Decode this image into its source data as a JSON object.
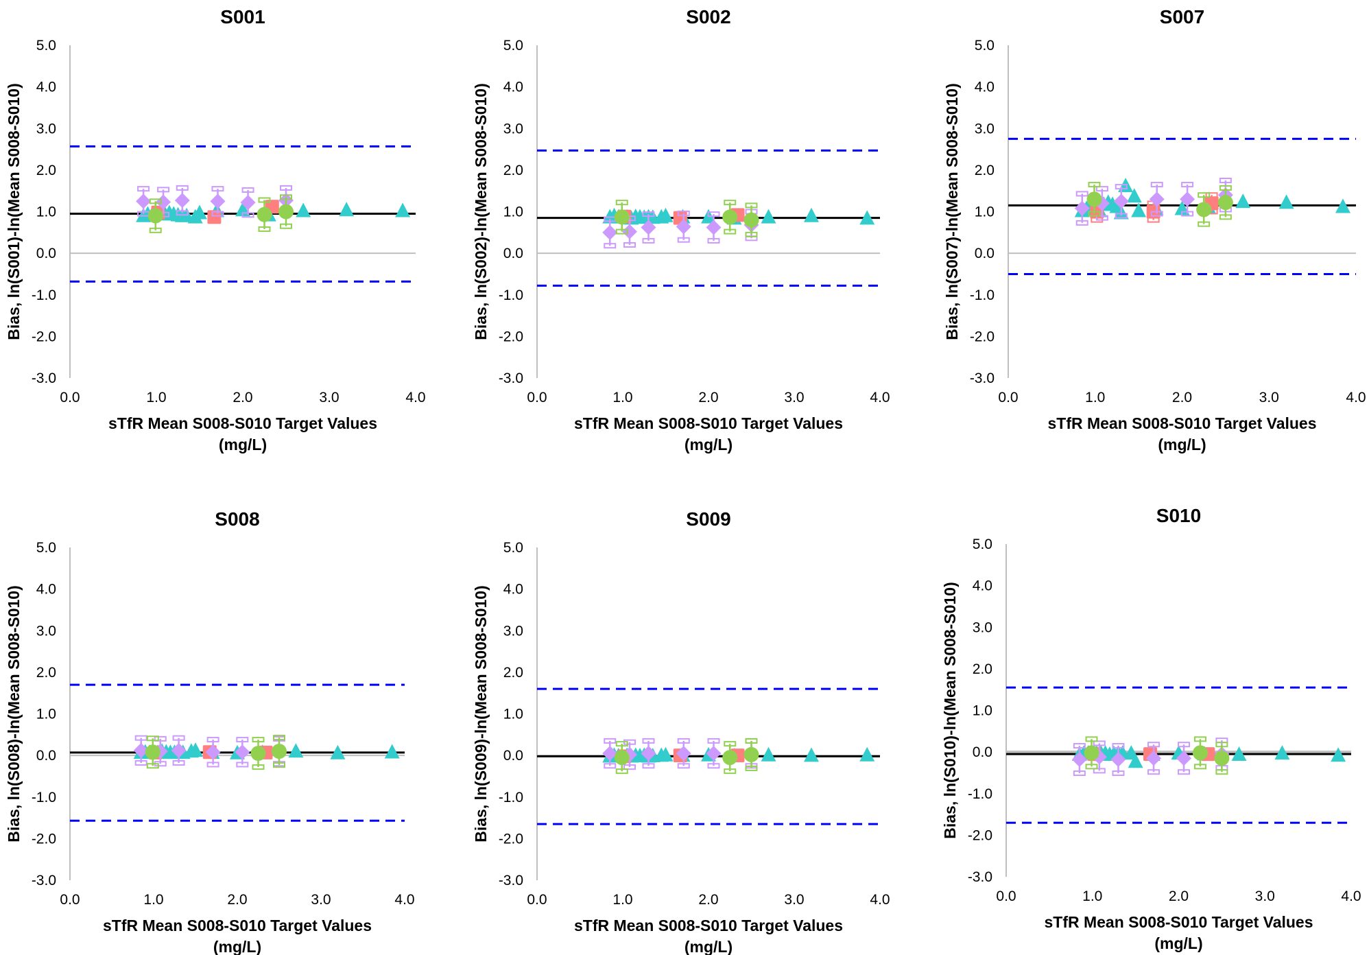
{
  "colors": {
    "diamond": "#CC99FF",
    "square": "#FF7F7F",
    "circle": "#92D050",
    "triangle": "#33CCCC",
    "limits": "#0000FF",
    "mean": "#000000",
    "zero": "#BFBFBF"
  },
  "chart_data": [
    {
      "type": "scatter",
      "title": "S001",
      "xlabel": [
        "sTfR Mean S008-S010 Target Values",
        "(mg/L)"
      ],
      "ylabel": "Bias, ln(S001)-ln(Mean S008-S010)",
      "xlim": [
        0,
        4
      ],
      "ylim": [
        -3,
        5
      ],
      "xticks": [
        "0.0",
        "1.0",
        "2.0",
        "3.0",
        "4.0"
      ],
      "yticks": [
        "-3.0",
        "-2.0",
        "-1.0",
        "0.0",
        "1.0",
        "2.0",
        "3.0",
        "4.0",
        "5.0"
      ],
      "mean_bias": 0.95,
      "upper_limit": 2.57,
      "lower_limit": -0.68,
      "series": [
        {
          "marker": "diamond",
          "x": [
            0.85,
            1.08,
            1.3,
            1.71,
            2.06,
            2.5
          ],
          "y": [
            1.25,
            1.23,
            1.27,
            1.25,
            1.22,
            1.27
          ],
          "err": 0.3
        },
        {
          "marker": "square",
          "x": [
            1.02,
            1.67,
            2.34
          ],
          "y": [
            0.98,
            0.87,
            1.12
          ]
        },
        {
          "marker": "circle",
          "x": [
            0.99,
            2.25,
            2.5
          ],
          "y": [
            0.9,
            0.93,
            1.0
          ],
          "err": 0.35
        },
        {
          "marker": "triangle",
          "x": [
            0.85,
            0.9,
            0.95,
            1.05,
            1.1,
            1.15,
            1.2,
            1.25,
            1.3,
            1.35,
            1.45,
            1.5,
            1.7,
            2.0,
            2.3,
            2.7,
            3.2,
            3.85
          ],
          "y": [
            0.88,
            0.92,
            0.9,
            0.95,
            0.92,
            0.95,
            0.92,
            0.9,
            0.88,
            0.88,
            0.85,
            0.95,
            1.0,
            1.02,
            0.9,
            1.0,
            1.02,
            1.0
          ]
        }
      ]
    },
    {
      "type": "scatter",
      "title": "S002",
      "xlabel": [
        "sTfR Mean S008-S010 Target Values",
        "(mg/L)"
      ],
      "ylabel": "Bias, ln(S002)-ln(Mean S008-S010)",
      "xlim": [
        0,
        4
      ],
      "ylim": [
        -3,
        5
      ],
      "xticks": [
        "0.0",
        "1.0",
        "2.0",
        "3.0",
        "4.0"
      ],
      "yticks": [
        "-3.0",
        "-2.0",
        "-1.0",
        "0.0",
        "1.0",
        "2.0",
        "3.0",
        "4.0",
        "5.0"
      ],
      "mean_bias": 0.85,
      "upper_limit": 2.47,
      "lower_limit": -0.78,
      "series": [
        {
          "marker": "diamond",
          "x": [
            0.85,
            1.08,
            1.3,
            1.71,
            2.06,
            2.5
          ],
          "y": [
            0.5,
            0.52,
            0.62,
            0.64,
            0.62,
            0.68
          ],
          "err": 0.32
        },
        {
          "marker": "square",
          "x": [
            1.02,
            1.67,
            2.34
          ],
          "y": [
            0.88,
            0.85,
            0.92
          ]
        },
        {
          "marker": "circle",
          "x": [
            0.99,
            2.25,
            2.5
          ],
          "y": [
            0.87,
            0.87,
            0.8
          ],
          "err": 0.35
        },
        {
          "marker": "triangle",
          "x": [
            0.85,
            0.9,
            0.95,
            1.05,
            1.1,
            1.15,
            1.2,
            1.25,
            1.3,
            1.35,
            1.45,
            1.5,
            1.7,
            2.0,
            2.3,
            2.7,
            3.2,
            3.85
          ],
          "y": [
            0.85,
            0.88,
            0.85,
            0.85,
            0.82,
            0.86,
            0.85,
            0.84,
            0.85,
            0.84,
            0.85,
            0.88,
            0.85,
            0.85,
            0.82,
            0.85,
            0.88,
            0.82
          ]
        }
      ]
    },
    {
      "type": "scatter",
      "title": "S007",
      "xlabel": [
        "sTfR Mean S008-S010 Target Values",
        "(mg/L)"
      ],
      "ylabel": "Bias, ln(S007)-ln(Mean S008-S010)",
      "xlim": [
        0,
        4
      ],
      "ylim": [
        -3,
        5
      ],
      "xticks": [
        "0.0",
        "1.0",
        "2.0",
        "3.0",
        "4.0"
      ],
      "yticks": [
        "-3.0",
        "-2.0",
        "-1.0",
        "0.0",
        "1.0",
        "2.0",
        "3.0",
        "4.0",
        "5.0"
      ],
      "mean_bias": 1.15,
      "upper_limit": 2.75,
      "lower_limit": -0.5,
      "series": [
        {
          "marker": "diamond",
          "x": [
            0.85,
            1.08,
            1.3,
            1.71,
            2.06,
            2.5
          ],
          "y": [
            1.08,
            1.2,
            1.25,
            1.3,
            1.3,
            1.4
          ],
          "err": 0.35
        },
        {
          "marker": "square",
          "x": [
            1.02,
            1.67,
            2.34
          ],
          "y": [
            1.0,
            1.0,
            1.2
          ],
          "err": 0.2
        },
        {
          "marker": "circle",
          "x": [
            0.99,
            2.25,
            2.5
          ],
          "y": [
            1.3,
            1.05,
            1.22
          ],
          "err": 0.35
        },
        {
          "marker": "triangle",
          "x": [
            0.85,
            0.9,
            0.95,
            1.05,
            1.1,
            1.15,
            1.2,
            1.25,
            1.3,
            1.35,
            1.45,
            1.5,
            1.7,
            2.0,
            2.3,
            2.7,
            3.2,
            3.85
          ],
          "y": [
            1.0,
            1.05,
            1.2,
            1.0,
            1.15,
            1.2,
            1.15,
            1.1,
            0.95,
            1.6,
            1.35,
            1.0,
            1.05,
            1.05,
            1.1,
            1.22,
            1.2,
            1.1
          ]
        }
      ]
    },
    {
      "type": "scatter",
      "title": "S008",
      "xlabel": [
        "sTfR Mean S008-S010 Target Values",
        "(mg/L)"
      ],
      "ylabel": "Bias, ln(S008)-ln(Mean S008-S010)",
      "xlim": [
        0,
        4
      ],
      "ylim": [
        -3,
        5
      ],
      "xticks": [
        "0.0",
        "1.0",
        "2.0",
        "3.0",
        "4.0"
      ],
      "yticks": [
        "-3.0",
        "-2.0",
        "-1.0",
        "0.0",
        "1.0",
        "2.0",
        "3.0",
        "4.0",
        "5.0"
      ],
      "mean_bias": 0.07,
      "upper_limit": 1.7,
      "lower_limit": -1.57,
      "series": [
        {
          "marker": "diamond",
          "x": [
            0.85,
            1.08,
            1.3,
            1.71,
            2.06,
            2.5
          ],
          "y": [
            0.12,
            0.1,
            0.12,
            0.08,
            0.08,
            0.1
          ],
          "err": 0.3
        },
        {
          "marker": "square",
          "x": [
            1.02,
            1.67,
            2.34
          ],
          "y": [
            0.07,
            0.08,
            0.07
          ]
        },
        {
          "marker": "circle",
          "x": [
            0.99,
            2.25,
            2.5
          ],
          "y": [
            0.08,
            0.05,
            0.1
          ],
          "err": 0.33
        },
        {
          "marker": "triangle",
          "x": [
            0.85,
            0.9,
            0.95,
            1.05,
            1.1,
            1.15,
            1.2,
            1.25,
            1.3,
            1.35,
            1.45,
            1.5,
            1.7,
            2.0,
            2.3,
            2.7,
            3.2,
            3.85
          ],
          "y": [
            0.05,
            0.06,
            0.05,
            0.05,
            0.08,
            0.06,
            0.05,
            0.05,
            0.06,
            0.05,
            0.08,
            0.1,
            0.05,
            0.04,
            0.05,
            0.08,
            0.04,
            0.06
          ]
        }
      ]
    },
    {
      "type": "scatter",
      "title": "S009",
      "xlabel": [
        "sTfR Mean S008-S010 Target Values",
        "(mg/L)"
      ],
      "ylabel": "Bias, ln(S009)-ln(Mean S008-S010)",
      "xlim": [
        0,
        4
      ],
      "ylim": [
        -3,
        5
      ],
      "xticks": [
        "0.0",
        "1.0",
        "2.0",
        "3.0",
        "4.0"
      ],
      "yticks": [
        "-3.0",
        "-2.0",
        "-1.0",
        "0.0",
        "1.0",
        "2.0",
        "3.0",
        "4.0",
        "5.0"
      ],
      "mean_bias": -0.02,
      "upper_limit": 1.6,
      "lower_limit": -1.65,
      "series": [
        {
          "marker": "diamond",
          "x": [
            0.85,
            1.08,
            1.3,
            1.71,
            2.06,
            2.5
          ],
          "y": [
            0.05,
            0.02,
            0.05,
            0.05,
            0.05,
            0.05
          ],
          "err": 0.3
        },
        {
          "marker": "square",
          "x": [
            1.02,
            1.67,
            2.34
          ],
          "y": [
            -0.02,
            0.0,
            0.0
          ]
        },
        {
          "marker": "circle",
          "x": [
            0.99,
            2.25,
            2.5
          ],
          "y": [
            -0.05,
            -0.05,
            0.02
          ],
          "err": 0.33
        },
        {
          "marker": "triangle",
          "x": [
            0.85,
            0.9,
            0.95,
            1.05,
            1.1,
            1.15,
            1.2,
            1.25,
            1.3,
            1.35,
            1.45,
            1.5,
            1.7,
            2.0,
            2.3,
            2.7,
            3.2,
            3.85
          ],
          "y": [
            -0.04,
            -0.02,
            -0.03,
            -0.02,
            -0.04,
            -0.02,
            -0.03,
            -0.02,
            -0.04,
            -0.03,
            -0.02,
            -0.01,
            -0.02,
            -0.01,
            -0.03,
            -0.01,
            -0.02,
            -0.01
          ]
        }
      ]
    },
    {
      "type": "scatter",
      "title": "S010",
      "xlabel": [
        "sTfR Mean S008-S010 Target Values",
        "(mg/L)"
      ],
      "ylabel": "Bias, ln(S010)-ln(Mean S008-S010)",
      "xlim": [
        0,
        4
      ],
      "ylim": [
        -3,
        5
      ],
      "xticks": [
        "0.0",
        "1.0",
        "2.0",
        "3.0",
        "4.0"
      ],
      "yticks": [
        "-3.0",
        "-2.0",
        "-1.0",
        "0.0",
        "1.0",
        "2.0",
        "3.0",
        "4.0",
        "5.0"
      ],
      "mean_bias": -0.05,
      "upper_limit": 1.55,
      "lower_limit": -1.7,
      "series": [
        {
          "marker": "diamond",
          "x": [
            0.85,
            1.08,
            1.3,
            1.71,
            2.06,
            2.5
          ],
          "y": [
            -0.18,
            -0.12,
            -0.18,
            -0.15,
            -0.15,
            -0.05
          ],
          "err": 0.33
        },
        {
          "marker": "square",
          "x": [
            1.02,
            1.67,
            2.34
          ],
          "y": [
            -0.05,
            -0.05,
            -0.05
          ]
        },
        {
          "marker": "circle",
          "x": [
            0.99,
            2.25,
            2.5
          ],
          "y": [
            -0.02,
            -0.02,
            -0.15
          ],
          "err": 0.33
        },
        {
          "marker": "triangle",
          "x": [
            0.85,
            0.9,
            0.95,
            1.05,
            1.1,
            1.15,
            1.2,
            1.25,
            1.3,
            1.35,
            1.45,
            1.5,
            1.7,
            2.0,
            2.3,
            2.7,
            3.2,
            3.85
          ],
          "y": [
            -0.08,
            -0.05,
            -0.05,
            -0.05,
            -0.05,
            -0.05,
            -0.08,
            -0.06,
            -0.05,
            -0.05,
            -0.05,
            -0.25,
            -0.08,
            -0.05,
            -0.07,
            -0.08,
            -0.05,
            -0.1
          ]
        }
      ]
    }
  ]
}
